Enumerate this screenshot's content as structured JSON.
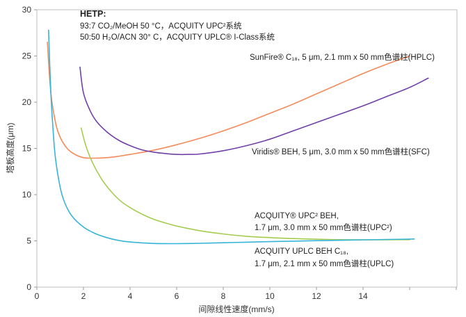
{
  "chart_data": {
    "type": "line",
    "xlabel": "间隙线性速度(mm/s)",
    "ylabel": "塔板高度(μm)",
    "xlim": [
      0,
      18
    ],
    "ylim": [
      0,
      30
    ],
    "x_ticks": [
      "0",
      "2",
      "4",
      "6",
      "8",
      "10",
      "12",
      "14"
    ],
    "y_ticks": [
      "0",
      "5",
      "10",
      "15",
      "20",
      "25",
      "30"
    ],
    "title_block": {
      "heading": "HETP:",
      "line1": "93:7 CO₂/MeOH 50 °C，ACQUITY UPC²系统",
      "line2": "50:50 H₂O/ACN 30° C，ACQUITY UPLC® I-Class系统"
    },
    "series": [
      {
        "label_line1": "SunFire® C₁₈, 5 μm, 2.1 mm x 50 mm色谱柱(HPLC)",
        "label_line2": "",
        "color": "#F58A5A",
        "x": [
          0.45,
          0.6,
          0.8,
          1.0,
          1.3,
          1.6,
          2.0,
          2.5,
          3.0,
          3.5,
          4.0,
          5.0,
          6.0,
          7.0,
          8.0,
          9.0,
          10.0,
          11.0,
          12.0,
          13.0,
          14.0,
          15.0,
          16.0
        ],
        "y": [
          26.5,
          21.0,
          17.8,
          16.2,
          15.0,
          14.4,
          14.0,
          13.95,
          14.0,
          14.15,
          14.35,
          14.8,
          15.4,
          16.1,
          16.9,
          17.8,
          18.8,
          19.8,
          20.9,
          22.0,
          23.1,
          24.1,
          25.0
        ]
      },
      {
        "label_line1": "Viridis® BEH, 5 μm, 3.0 mm x 50 mm色谱柱(SFC)",
        "label_line2": "",
        "color": "#7040A8",
        "x": [
          1.85,
          2.0,
          2.3,
          2.6,
          3.0,
          3.5,
          4.0,
          4.5,
          5.0,
          5.5,
          6.0,
          6.5,
          7.0,
          8.0,
          9.0,
          10.0,
          11.0,
          12.0,
          13.0,
          14.0,
          15.0,
          16.0,
          16.8
        ],
        "y": [
          23.8,
          21.0,
          19.0,
          17.8,
          16.8,
          15.9,
          15.3,
          14.85,
          14.6,
          14.45,
          14.35,
          14.35,
          14.4,
          14.75,
          15.3,
          16.0,
          16.9,
          17.8,
          18.7,
          19.6,
          20.6,
          21.6,
          22.6
        ]
      },
      {
        "label_line1": "ACQUITY® UPC² BEH,",
        "label_line2": "1.7 μm, 3.0 mm x 50 mm色谱柱(UPC²)",
        "color": "#A6CC4E",
        "x": [
          1.9,
          2.1,
          2.4,
          2.8,
          3.2,
          3.6,
          4.0,
          4.5,
          5.0,
          5.5,
          6.0,
          7.0,
          8.0,
          9.0,
          10.0,
          11.0,
          12.0,
          13.0,
          14.0,
          15.0,
          16.0
        ],
        "y": [
          17.2,
          15.3,
          13.4,
          11.6,
          10.3,
          9.3,
          8.6,
          7.9,
          7.35,
          6.95,
          6.6,
          6.1,
          5.75,
          5.5,
          5.35,
          5.25,
          5.18,
          5.13,
          5.12,
          5.12,
          5.13
        ]
      },
      {
        "label_line1": "ACQUITY UPLC BEH C₁₈,",
        "label_line2": "1.7 μm, 2.1 mm x 50 mm色谱柱(UPLC)",
        "color": "#36B4D8",
        "x": [
          0.5,
          0.6,
          0.7,
          0.8,
          1.0,
          1.2,
          1.5,
          2.0,
          2.5,
          3.0,
          3.5,
          4.0,
          5.0,
          6.0,
          7.0,
          8.0,
          9.0,
          10.0,
          11.0,
          12.0,
          13.0,
          14.0,
          15.0,
          16.2
        ],
        "y": [
          27.8,
          21.0,
          16.8,
          13.9,
          10.8,
          9.1,
          7.7,
          6.5,
          5.8,
          5.35,
          5.05,
          4.88,
          4.72,
          4.7,
          4.74,
          4.8,
          4.86,
          4.92,
          4.97,
          5.02,
          5.07,
          5.11,
          5.15,
          5.2
        ]
      }
    ]
  }
}
